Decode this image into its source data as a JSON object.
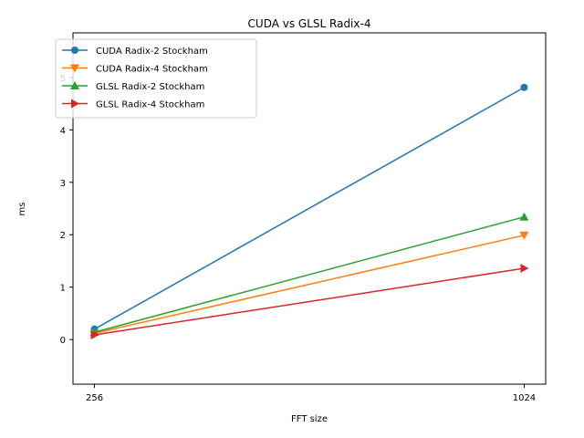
{
  "chart_data": {
    "type": "line",
    "title": "CUDA vs GLSL Radix-4",
    "xlabel": "FFT size",
    "ylabel": "ms",
    "categories": [
      "256",
      "1024"
    ],
    "xlim": [
      -0.05,
      1.05
    ],
    "ylim": [
      -0.85,
      5.85
    ],
    "yticks": [
      0,
      1,
      2,
      3,
      4,
      5
    ],
    "grid": false,
    "legend_position": "upper-left",
    "series": [
      {
        "name": "CUDA Radix-2 Stockham",
        "values": [
          0.2,
          4.81
        ],
        "color": "#1f77b4",
        "marker": "circle"
      },
      {
        "name": "CUDA Radix-4 Stockham",
        "values": [
          0.12,
          1.99
        ],
        "color": "#ff7f0e",
        "marker": "triangle-down"
      },
      {
        "name": "GLSL Radix-2 Stockham",
        "values": [
          0.14,
          2.34
        ],
        "color": "#2ca02c",
        "marker": "triangle-up"
      },
      {
        "name": "GLSL Radix-4 Stockham",
        "values": [
          0.09,
          1.36
        ],
        "color": "#d62728",
        "marker": "triangle-right"
      }
    ]
  }
}
